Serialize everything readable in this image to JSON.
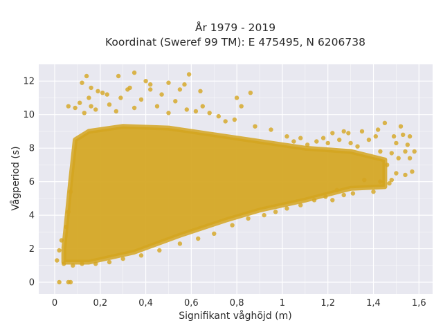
{
  "chart_data": {
    "type": "scatter",
    "title": "År 1979 - 2019",
    "subtitle": "Koordinat (Sweref 99 TM): E 475495, N 6206738",
    "xlabel": "Signifikant våghöjd (m)",
    "ylabel": "Vågperiod (s)",
    "xlim": [
      -0.07,
      1.66
    ],
    "ylim": [
      -0.7,
      13.0
    ],
    "x_ticks": [
      0,
      0.2,
      0.4,
      0.6,
      0.8,
      1,
      1.2,
      1.4,
      1.6
    ],
    "x_tick_labels": [
      "0",
      "0,2",
      "0,4",
      "0,6",
      "0,8",
      "1",
      "1,2",
      "1,4",
      "1,6"
    ],
    "y_ticks": [
      0,
      2,
      4,
      6,
      8,
      10,
      12
    ],
    "y_tick_labels": [
      "0",
      "2",
      "4",
      "6",
      "8",
      "10",
      "12"
    ],
    "grid": true,
    "legend": false,
    "colors": {
      "marker": "#d4a520",
      "plot_background": "#e8e8f0",
      "grid": "#ffffff",
      "text": "#2a2a2a"
    },
    "dense_region": [
      [
        0.04,
        1.2
      ],
      [
        0.15,
        1.2
      ],
      [
        0.35,
        1.8
      ],
      [
        0.55,
        2.8
      ],
      [
        0.75,
        3.7
      ],
      [
        0.9,
        4.3
      ],
      [
        1.1,
        4.9
      ],
      [
        1.3,
        5.6
      ],
      [
        1.45,
        5.7
      ],
      [
        1.45,
        7.3
      ],
      [
        1.3,
        7.8
      ],
      [
        1.1,
        8.0
      ],
      [
        0.9,
        8.4
      ],
      [
        0.7,
        8.8
      ],
      [
        0.5,
        9.2
      ],
      [
        0.3,
        9.3
      ],
      [
        0.15,
        9.0
      ],
      [
        0.09,
        8.5
      ],
      [
        0.07,
        6.0
      ],
      [
        0.04,
        2.0
      ]
    ],
    "points": [
      [
        0.02,
        0.0
      ],
      [
        0.06,
        0.0
      ],
      [
        0.07,
        0.0
      ],
      [
        0.01,
        1.3
      ],
      [
        0.02,
        1.9
      ],
      [
        0.03,
        2.5
      ],
      [
        0.05,
        3.3
      ],
      [
        0.06,
        4.2
      ],
      [
        0.07,
        5.4
      ],
      [
        0.06,
        10.5
      ],
      [
        0.09,
        10.4
      ],
      [
        0.11,
        10.7
      ],
      [
        0.13,
        10.1
      ],
      [
        0.15,
        11.0
      ],
      [
        0.16,
        10.5
      ],
      [
        0.18,
        10.3
      ],
      [
        0.21,
        11.3
      ],
      [
        0.24,
        10.6
      ],
      [
        0.27,
        10.2
      ],
      [
        0.29,
        11.0
      ],
      [
        0.33,
        11.6
      ],
      [
        0.35,
        10.4
      ],
      [
        0.38,
        10.9
      ],
      [
        0.42,
        11.5
      ],
      [
        0.45,
        10.5
      ],
      [
        0.47,
        11.2
      ],
      [
        0.5,
        10.1
      ],
      [
        0.53,
        10.8
      ],
      [
        0.55,
        11.5
      ],
      [
        0.58,
        10.3
      ],
      [
        0.62,
        10.2
      ],
      [
        0.65,
        10.5
      ],
      [
        0.68,
        10.1
      ],
      [
        0.72,
        9.9
      ],
      [
        0.75,
        9.6
      ],
      [
        0.12,
        11.9
      ],
      [
        0.14,
        12.3
      ],
      [
        0.16,
        11.6
      ],
      [
        0.19,
        11.4
      ],
      [
        0.23,
        11.2
      ],
      [
        0.28,
        12.3
      ],
      [
        0.32,
        11.5
      ],
      [
        0.35,
        12.5
      ],
      [
        0.4,
        12.0
      ],
      [
        0.42,
        11.8
      ],
      [
        0.5,
        11.9
      ],
      [
        0.57,
        11.8
      ],
      [
        0.59,
        12.4
      ],
      [
        0.64,
        11.4
      ],
      [
        0.8,
        11.0
      ],
      [
        0.86,
        11.3
      ],
      [
        0.82,
        10.5
      ],
      [
        0.79,
        9.7
      ],
      [
        0.88,
        9.3
      ],
      [
        0.95,
        9.1
      ],
      [
        1.02,
        8.7
      ],
      [
        1.08,
        8.6
      ],
      [
        1.15,
        8.4
      ],
      [
        1.2,
        8.3
      ],
      [
        1.25,
        8.5
      ],
      [
        1.3,
        8.3
      ],
      [
        1.33,
        8.1
      ],
      [
        1.38,
        8.5
      ],
      [
        1.41,
        8.7
      ],
      [
        1.43,
        7.8
      ],
      [
        1.46,
        7.0
      ],
      [
        1.48,
        7.7
      ],
      [
        1.49,
        8.7
      ],
      [
        1.5,
        8.3
      ],
      [
        1.51,
        7.4
      ],
      [
        1.53,
        8.8
      ],
      [
        1.54,
        7.8
      ],
      [
        1.55,
        8.2
      ],
      [
        1.56,
        8.7
      ],
      [
        1.58,
        7.8
      ],
      [
        1.48,
        6.1
      ],
      [
        1.5,
        6.5
      ],
      [
        1.54,
        6.4
      ],
      [
        1.56,
        7.4
      ],
      [
        1.57,
        6.6
      ],
      [
        1.47,
        5.9
      ],
      [
        1.4,
        5.4
      ],
      [
        1.43,
        6.0
      ],
      [
        1.36,
        6.1
      ],
      [
        1.31,
        5.3
      ],
      [
        1.27,
        5.2
      ],
      [
        1.24,
        5.5
      ],
      [
        1.22,
        4.9
      ],
      [
        1.19,
        5.1
      ],
      [
        1.14,
        4.9
      ],
      [
        1.08,
        4.6
      ],
      [
        1.02,
        4.4
      ],
      [
        0.97,
        4.2
      ],
      [
        0.92,
        4.0
      ],
      [
        0.85,
        3.8
      ],
      [
        0.78,
        3.4
      ],
      [
        0.7,
        2.9
      ],
      [
        0.63,
        2.6
      ],
      [
        0.55,
        2.3
      ],
      [
        0.46,
        1.9
      ],
      [
        0.38,
        1.6
      ],
      [
        0.3,
        1.4
      ],
      [
        0.24,
        1.2
      ],
      [
        0.18,
        1.1
      ],
      [
        0.12,
        1.1
      ],
      [
        0.08,
        1.0
      ],
      [
        0.04,
        1.1
      ],
      [
        1.45,
        9.5
      ],
      [
        1.42,
        9.1
      ],
      [
        1.52,
        9.3
      ],
      [
        1.35,
        9.0
      ],
      [
        1.29,
        8.9
      ],
      [
        1.27,
        9.0
      ],
      [
        1.22,
        8.9
      ],
      [
        1.18,
        8.6
      ],
      [
        1.11,
        8.2
      ],
      [
        1.05,
        8.4
      ]
    ]
  }
}
